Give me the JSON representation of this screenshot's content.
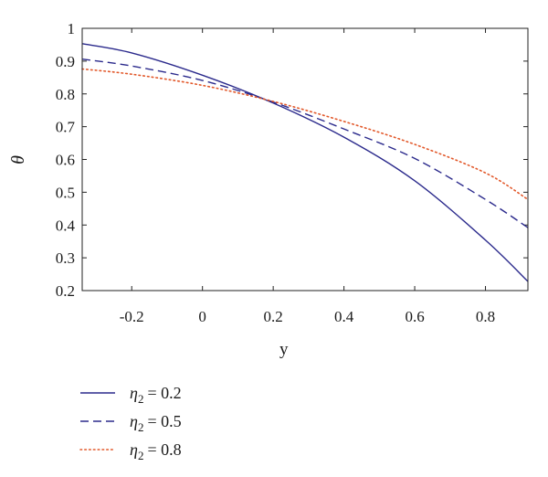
{
  "chart_data": {
    "type": "line",
    "title": "",
    "xlabel": "y",
    "ylabel": "θ",
    "xlim": [
      -0.34,
      0.92
    ],
    "ylim": [
      0.2,
      1.0
    ],
    "xticks": [
      -0.2,
      0,
      0.2,
      0.4,
      0.6,
      0.8
    ],
    "xtick_labels": [
      "-0.2",
      "0",
      "0.2",
      "0.4",
      "0.6",
      "0.8"
    ],
    "yticks": [
      0.2,
      0.3,
      0.4,
      0.5,
      0.6,
      0.7,
      0.8,
      0.9,
      1.0
    ],
    "ytick_labels": [
      "0.2",
      "0.3",
      "0.4",
      "0.5",
      "0.6",
      "0.7",
      "0.8",
      "0.9",
      "1"
    ],
    "grid": false,
    "legend_position": "below",
    "series": [
      {
        "name": "η2 = 0.2",
        "legend_symbol": "η",
        "legend_subscript": "2",
        "legend_value": "= 0.2",
        "style": "solid",
        "color": "#2b2a8c",
        "x": [
          -0.34,
          -0.2,
          0.0,
          0.2,
          0.4,
          0.6,
          0.8,
          0.92
        ],
        "y": [
          0.953,
          0.925,
          0.857,
          0.772,
          0.668,
          0.535,
          0.354,
          0.228
        ]
      },
      {
        "name": "η2 = 0.5",
        "legend_symbol": "η",
        "legend_subscript": "2",
        "legend_value": "= 0.5",
        "style": "dashed",
        "color": "#2b2a8c",
        "x": [
          -0.34,
          -0.2,
          0.0,
          0.2,
          0.4,
          0.6,
          0.8,
          0.92
        ],
        "y": [
          0.906,
          0.885,
          0.841,
          0.775,
          0.693,
          0.603,
          0.478,
          0.392
        ]
      },
      {
        "name": "η2 = 0.8",
        "legend_symbol": "η",
        "legend_subscript": "2",
        "legend_value": "= 0.8",
        "style": "dotted",
        "color": "#e2582a",
        "x": [
          -0.34,
          -0.2,
          0.0,
          0.2,
          0.4,
          0.6,
          0.8,
          0.92
        ],
        "y": [
          0.876,
          0.86,
          0.826,
          0.777,
          0.716,
          0.646,
          0.559,
          0.478
        ]
      }
    ]
  }
}
